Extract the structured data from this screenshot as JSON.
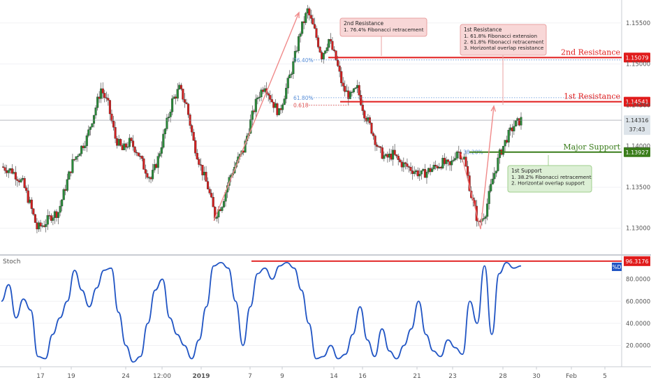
{
  "chart_data": [
    {
      "type": "candlestick",
      "price_axis": {
        "ticks": [
          "1.15500",
          "1.15000",
          "1.14500",
          "1.14000",
          "1.13500",
          "1.13000"
        ],
        "ylim": [
          1.127,
          1.1578
        ]
      },
      "time_axis": {
        "ticks": [
          "17",
          "19",
          "24",
          "12:00",
          "2019",
          "7",
          "9",
          "14",
          "16",
          "21",
          "23",
          "28",
          "30",
          "Feb",
          "5"
        ]
      },
      "levels": [
        {
          "key": "second_resistance",
          "label": "2nd Resistance",
          "value": 1.15079,
          "price_tag": "1.15079",
          "color": "#e01b1b"
        },
        {
          "key": "first_resistance",
          "label": "1st Resistance",
          "value": 1.14541,
          "price_tag": "1.14541",
          "color": "#e01b1b"
        },
        {
          "key": "major_support",
          "label": "Major Support",
          "value": 1.13927,
          "price_tag": "1.13927",
          "color": "#3a7d1a"
        }
      ],
      "current_price": {
        "value": 1.14316,
        "label": "1.14316",
        "countdown": "37:43"
      },
      "fib_levels": [
        {
          "label": "76.40%",
          "value": 1.1505
        },
        {
          "label": "61.80%",
          "value": 1.1459
        },
        {
          "label": "0.618",
          "value": 1.145
        },
        {
          "label": "38.20%",
          "value": 1.1393
        }
      ],
      "annotations": [
        {
          "title": "2nd Resistance",
          "lines": [
            "1. 76.4% Fibonacci retracement"
          ],
          "color": "#f8d7d7",
          "border": "#e8a0a0"
        },
        {
          "title": "1st Resistance",
          "lines": [
            "1. 61.8% Fibonacci extension",
            "2. 61.8% Fibonacci retracement",
            "3. Horizontal overlap resistance"
          ],
          "color": "#f8d7d7",
          "border": "#e8a0a0"
        },
        {
          "title": "1st Support",
          "lines": [
            "1. 38.2% Fibonacci retracement",
            "2. Horizontal overlap support"
          ],
          "color": "#dcefd5",
          "border": "#9fcf8c"
        }
      ],
      "price_path": [
        [
          0,
          1.1375
        ],
        [
          3,
          1.137
        ],
        [
          6,
          1.1355
        ],
        [
          8,
          1.133
        ],
        [
          10,
          1.13
        ],
        [
          12,
          1.1305
        ],
        [
          14,
          1.1315
        ],
        [
          16,
          1.132
        ],
        [
          18,
          1.135
        ],
        [
          20,
          1.138
        ],
        [
          22,
          1.1395
        ],
        [
          24,
          1.141
        ],
        [
          26,
          1.144
        ],
        [
          28,
          1.147
        ],
        [
          30,
          1.145
        ],
        [
          32,
          1.141
        ],
        [
          34,
          1.1395
        ],
        [
          36,
          1.1405
        ],
        [
          38,
          1.1395
        ],
        [
          40,
          1.1375
        ],
        [
          42,
          1.136
        ],
        [
          44,
          1.1385
        ],
        [
          46,
          1.142
        ],
        [
          48,
          1.1455
        ],
        [
          50,
          1.147
        ],
        [
          52,
          1.145
        ],
        [
          54,
          1.1405
        ],
        [
          56,
          1.1375
        ],
        [
          58,
          1.135
        ],
        [
          60,
          1.1315
        ],
        [
          62,
          1.133
        ],
        [
          64,
          1.136
        ],
        [
          66,
          1.138
        ],
        [
          68,
          1.1395
        ],
        [
          70,
          1.143
        ],
        [
          72,
          1.146
        ],
        [
          74,
          1.1475
        ],
        [
          76,
          1.1455
        ],
        [
          78,
          1.144
        ],
        [
          80,
          1.147
        ],
        [
          82,
          1.15
        ],
        [
          84,
          1.154
        ],
        [
          86,
          1.1565
        ],
        [
          88,
          1.154
        ],
        [
          90,
          1.151
        ],
        [
          92,
          1.153
        ],
        [
          94,
          1.1505
        ],
        [
          96,
          1.147
        ],
        [
          98,
          1.146
        ],
        [
          100,
          1.147
        ],
        [
          102,
          1.144
        ],
        [
          104,
          1.142
        ],
        [
          106,
          1.1395
        ],
        [
          108,
          1.1385
        ],
        [
          110,
          1.139
        ],
        [
          112,
          1.138
        ],
        [
          114,
          1.1375
        ],
        [
          116,
          1.137
        ],
        [
          118,
          1.1365
        ],
        [
          120,
          1.137
        ],
        [
          122,
          1.1375
        ],
        [
          124,
          1.138
        ],
        [
          126,
          1.1375
        ],
        [
          128,
          1.1395
        ],
        [
          130,
          1.1385
        ],
        [
          132,
          1.134
        ],
        [
          134,
          1.1305
        ],
        [
          136,
          1.132
        ],
        [
          138,
          1.136
        ],
        [
          140,
          1.139
        ],
        [
          142,
          1.141
        ],
        [
          144,
          1.1425
        ],
        [
          146,
          1.1432
        ]
      ]
    },
    {
      "type": "line",
      "label": "Stoch",
      "legend": "%D",
      "y_axis": {
        "ticks": [
          "80.0000",
          "60.0000",
          "40.0000",
          "20.0000"
        ],
        "ylim": [
          2,
          100
        ]
      },
      "marker": {
        "value": 96.3176,
        "label": "96.3176",
        "color": "#e01b1b"
      },
      "series": [
        {
          "values": [
            60,
            75,
            45,
            62,
            52,
            10,
            8,
            30,
            45,
            60,
            88,
            70,
            55,
            72,
            88,
            90,
            50,
            20,
            5,
            10,
            40,
            70,
            80,
            45,
            30,
            20,
            8,
            25,
            55,
            92,
            95,
            90,
            60,
            20,
            55,
            85,
            90,
            80,
            92,
            95,
            90,
            70,
            40,
            8,
            10,
            20,
            8,
            12,
            30,
            55,
            25,
            10,
            35,
            15,
            8,
            20,
            35,
            60,
            30,
            15,
            10,
            25,
            18,
            12,
            60,
            40,
            92,
            30,
            85,
            95,
            90,
            92
          ]
        }
      ]
    }
  ]
}
